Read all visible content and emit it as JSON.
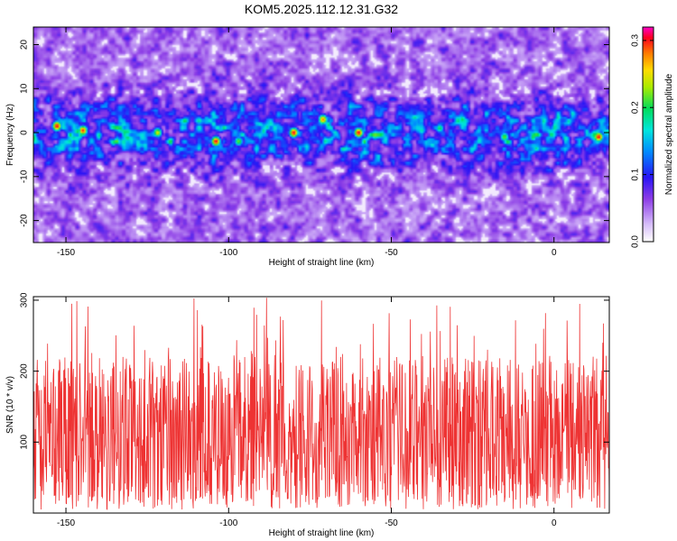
{
  "title": "KOM5.2025.112.12.31.G32",
  "chart_data": [
    {
      "type": "heatmap",
      "xlabel": "Height of straight line (km)",
      "ylabel": "Frequency (Hz)",
      "xlim": [
        -160,
        17
      ],
      "ylim": [
        -25,
        24
      ],
      "xticks": [
        -150,
        -100,
        -50,
        0
      ],
      "yticks": [
        -20,
        -10,
        0,
        10,
        20
      ],
      "band_center_hz": 0,
      "band_halfwidth_hz": 8,
      "colorbar": {
        "label": "Normalized spectral amplitude",
        "range": [
          0.0,
          0.32
        ],
        "ticks": [
          "0.0",
          "0.1",
          "0.2",
          "0.3"
        ]
      },
      "peaks": [
        {
          "x": -153,
          "y": 1.5,
          "v": 0.31
        },
        {
          "x": -145,
          "y": 0.5,
          "v": 0.3
        },
        {
          "x": -122,
          "y": 0,
          "v": 0.25
        },
        {
          "x": -104,
          "y": -2,
          "v": 0.31
        },
        {
          "x": -97,
          "y": -2,
          "v": 0.22
        },
        {
          "x": -80,
          "y": 0,
          "v": 0.31
        },
        {
          "x": -71,
          "y": 3,
          "v": 0.28
        },
        {
          "x": -60,
          "y": 0,
          "v": 0.31
        },
        {
          "x": -35,
          "y": 1,
          "v": 0.2
        },
        {
          "x": -28,
          "y": 3,
          "v": 0.2
        },
        {
          "x": -15,
          "y": -1,
          "v": 0.22
        },
        {
          "x": 14,
          "y": -1,
          "v": 0.31
        }
      ]
    },
    {
      "type": "line",
      "xlabel": "Height of straight line (km)",
      "ylabel": "SNR (10 * v/v)",
      "xlim": [
        -160,
        17
      ],
      "ylim": [
        0,
        305
      ],
      "xticks": [
        -150,
        -100,
        -50,
        0
      ],
      "yticks": [
        100,
        200,
        300
      ],
      "series_color": "#ee3333",
      "summary": {
        "typical_min": 15,
        "typical_max": 220,
        "peak_max": 305
      }
    }
  ]
}
